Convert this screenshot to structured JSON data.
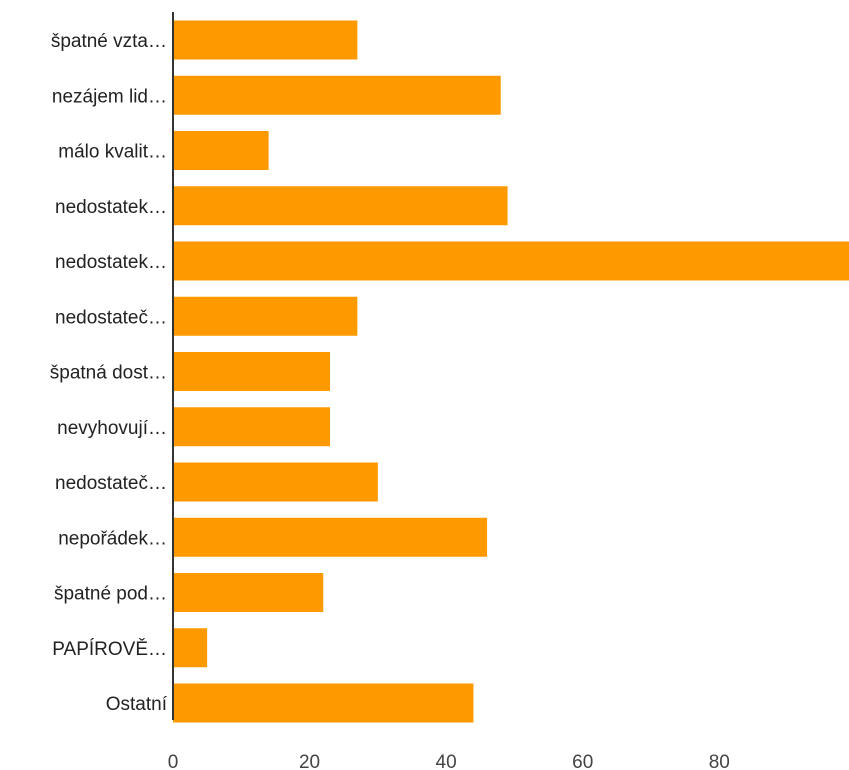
{
  "chart_data": {
    "type": "bar",
    "orientation": "horizontal",
    "title": "",
    "xlabel": "",
    "ylabel": "",
    "categories": [
      "špatné vzta…",
      "nezájem lid…",
      "málo kvalit…",
      "nedostatek…",
      "nedostatek…",
      "nedostateč…",
      "špatná dost…",
      "nevyhovují…",
      "nedostateč…",
      "nepořádek…",
      "špatné pod…",
      "PAPÍROVĚ…",
      "Ostatní"
    ],
    "values": [
      27,
      48,
      14,
      49,
      99,
      27,
      23,
      23,
      30,
      46,
      22,
      5,
      44
    ],
    "xlim": [
      0,
      99
    ],
    "xticks": [
      "0",
      "20",
      "40",
      "60",
      "80"
    ],
    "xtick_values": [
      0,
      20,
      40,
      60,
      80
    ],
    "grid": false,
    "legend": "none",
    "bar_color": "#ff9900",
    "axis_color": "#333333"
  }
}
